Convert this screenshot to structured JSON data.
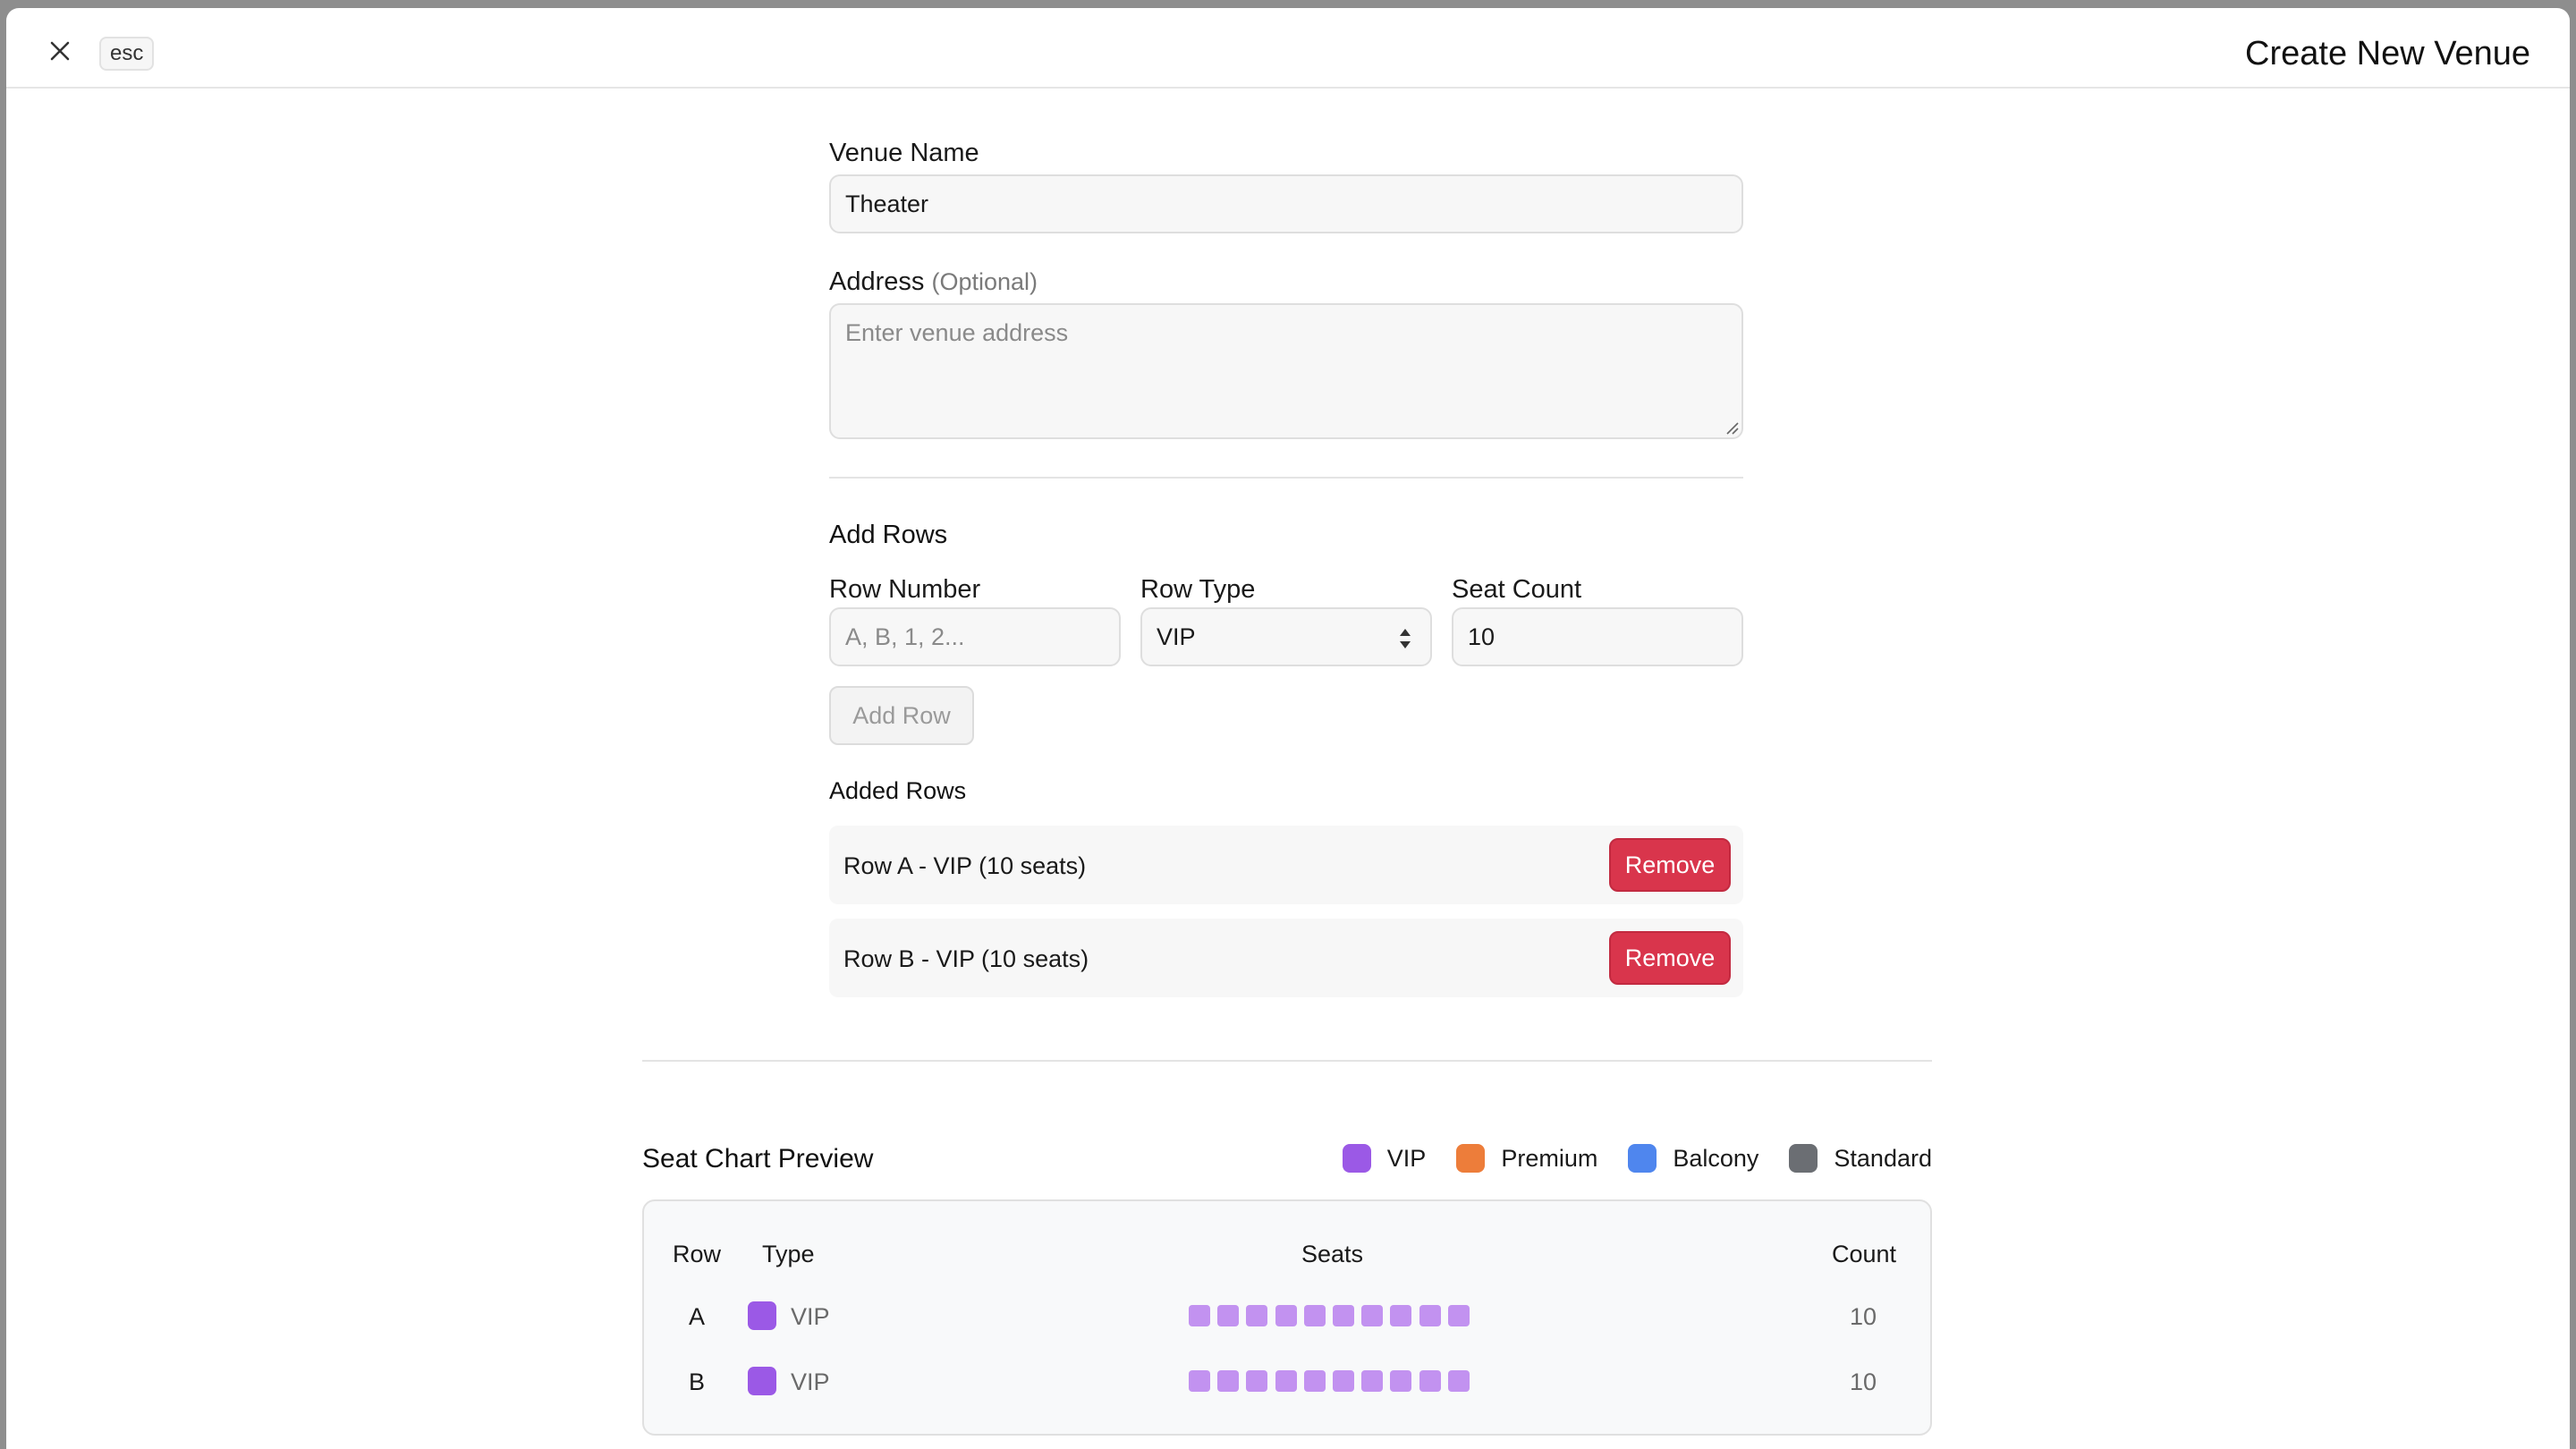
{
  "header": {
    "esc_label": "esc",
    "title": "Create New Venue"
  },
  "form": {
    "venue_name": {
      "label": "Venue Name",
      "value": "Theater"
    },
    "address": {
      "label": "Address",
      "optional": "(Optional)",
      "placeholder": "Enter venue address"
    },
    "add_rows": {
      "title": "Add Rows",
      "row_number": {
        "label": "Row Number",
        "placeholder": "A, B, 1, 2..."
      },
      "row_type": {
        "label": "Row Type",
        "value": "VIP"
      },
      "seat_count": {
        "label": "Seat Count",
        "value": "10"
      },
      "add_button": "Add Row"
    },
    "added_rows": {
      "title": "Added Rows",
      "items": [
        {
          "text": "Row A - VIP (10 seats)",
          "remove": "Remove"
        },
        {
          "text": "Row B - VIP (10 seats)",
          "remove": "Remove"
        }
      ]
    }
  },
  "preview": {
    "title": "Seat Chart Preview",
    "legend": [
      {
        "label": "VIP",
        "color": "#9b59e6"
      },
      {
        "label": "Premium",
        "color": "#ed7d3a"
      },
      {
        "label": "Balcony",
        "color": "#4f86ee"
      },
      {
        "label": "Standard",
        "color": "#6b6e73"
      }
    ],
    "columns": {
      "row": "Row",
      "type": "Type",
      "seats": "Seats",
      "count": "Count"
    },
    "rows": [
      {
        "row": "A",
        "type": "VIP",
        "seats": 10,
        "count": "10",
        "color": "#9b59e6",
        "seat_color": "#c292f0"
      },
      {
        "row": "B",
        "type": "VIP",
        "seats": 10,
        "count": "10",
        "color": "#9b59e6",
        "seat_color": "#c292f0"
      }
    ]
  }
}
